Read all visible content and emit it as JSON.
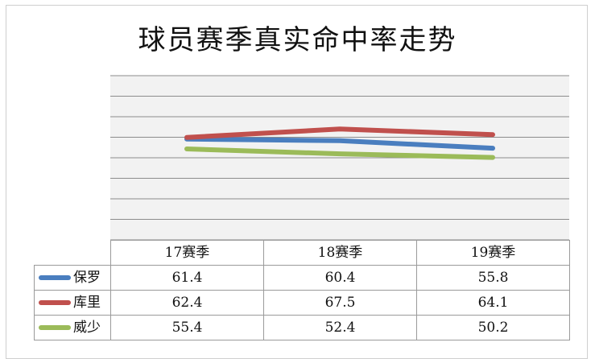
{
  "chart_data": {
    "type": "line",
    "title": "球员赛季真实命中率走势",
    "categories": [
      "17赛季",
      "18赛季",
      "19赛季"
    ],
    "series": [
      {
        "name": "保罗",
        "values": [
          61.4,
          60.4,
          55.8
        ],
        "color": "#4a7ebf"
      },
      {
        "name": "库里",
        "values": [
          62.4,
          67.5,
          64.1
        ],
        "color": "#c0504d"
      },
      {
        "name": "威少",
        "values": [
          55.4,
          52.4,
          50.2
        ],
        "color": "#9bbb59"
      }
    ],
    "ylim": [
      0,
      100
    ],
    "grid": true,
    "legend": "data-table"
  }
}
